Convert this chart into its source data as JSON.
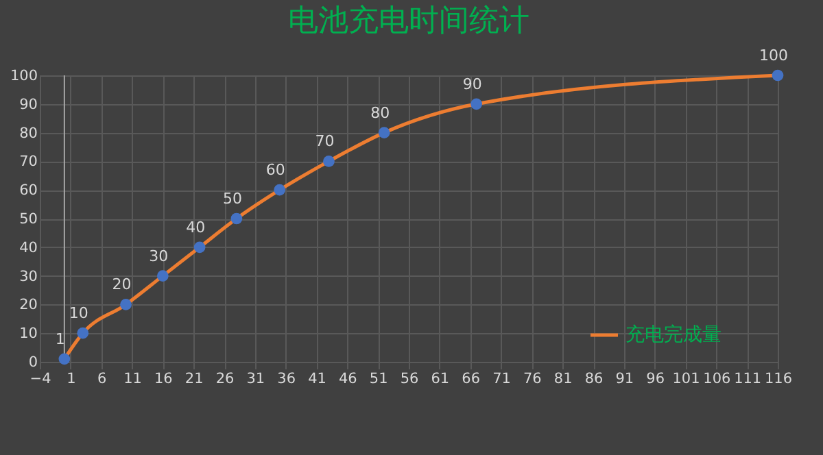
{
  "chart_data": {
    "type": "line",
    "title": "电池充电时间统计",
    "x": [
      0,
      3,
      10,
      16,
      22,
      28,
      35,
      43,
      52,
      67,
      116
    ],
    "series": [
      {
        "name": "充电完成量",
        "color": "#ed7d31",
        "values": [
          1,
          10,
          20,
          30,
          40,
          50,
          60,
          70,
          80,
          90,
          100
        ]
      }
    ],
    "xlim": [
      -4,
      116
    ],
    "xticks": [
      -4,
      1,
      6,
      11,
      16,
      21,
      26,
      31,
      36,
      41,
      46,
      51,
      56,
      61,
      66,
      71,
      76,
      81,
      86,
      91,
      96,
      101,
      106,
      111,
      116
    ],
    "ylim": [
      0,
      100
    ],
    "yticks": [
      0,
      10,
      20,
      30,
      40,
      50,
      60,
      70,
      80,
      90,
      100
    ],
    "ref_lines": [
      {
        "axis": "x",
        "value": 0,
        "label": null,
        "color": "#a6a6a6"
      }
    ],
    "grid": true,
    "legend": "bottom right",
    "marker": "circle",
    "line_style": "solid",
    "data_labels": true
  }
}
